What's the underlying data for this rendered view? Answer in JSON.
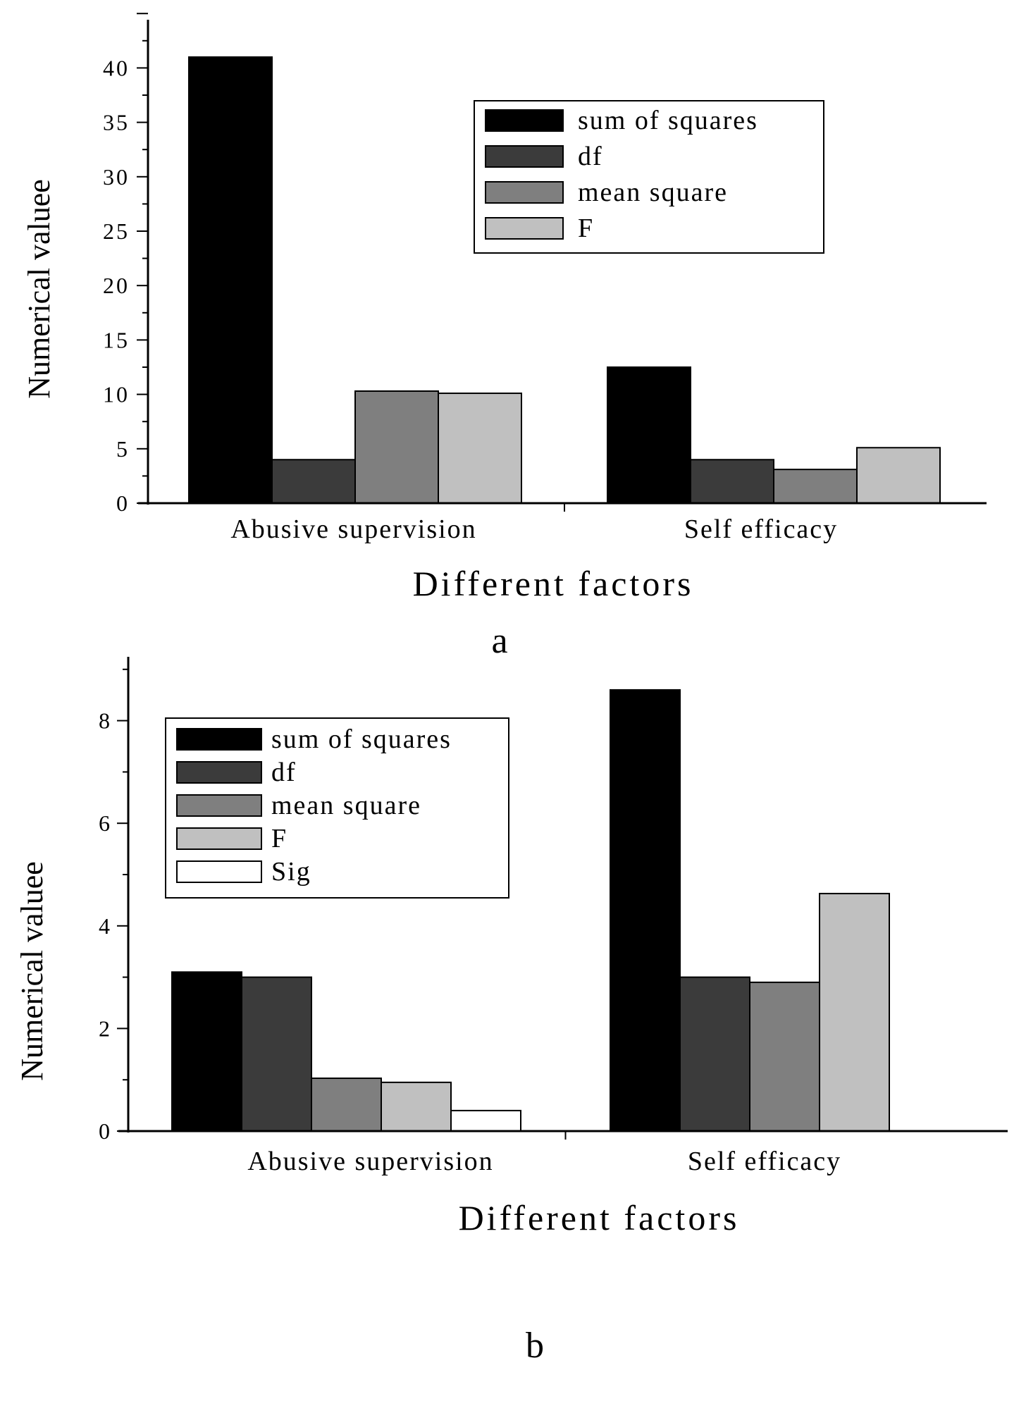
{
  "chart_data": [
    {
      "type": "bar",
      "panel": "a",
      "title": "",
      "xlabel": "Different factors",
      "ylabel": "Numerical valuee",
      "categories": [
        "Abusive supervision",
        "Self efficacy"
      ],
      "ylim": [
        0,
        45
      ],
      "yticks": [
        "0",
        "5",
        "10",
        "15",
        "20",
        "25",
        "30",
        "35",
        "40"
      ],
      "series": [
        {
          "name": "sum of squares",
          "color": "#000000",
          "values": [
            41.0,
            12.5
          ]
        },
        {
          "name": "df",
          "color": "#3b3b3b",
          "values": [
            4.0,
            4.0
          ]
        },
        {
          "name": "mean square",
          "color": "#7f7f7f",
          "values": [
            10.3,
            3.1
          ]
        },
        {
          "name": "F",
          "color": "#c0c0c0",
          "values": [
            10.1,
            5.1
          ]
        }
      ],
      "legend_position": "top-right",
      "grid": false
    },
    {
      "type": "bar",
      "panel": "b",
      "title": "",
      "xlabel": "Different factors",
      "ylabel": "Numerical valuee",
      "categories": [
        "Abusive supervision",
        "Self efficacy"
      ],
      "ylim": [
        0,
        9.3
      ],
      "yticks": [
        "0",
        "2",
        "4",
        "6",
        "8"
      ],
      "series": [
        {
          "name": "sum of squares",
          "color": "#000000",
          "values": [
            3.1,
            8.6
          ]
        },
        {
          "name": "df",
          "color": "#3b3b3b",
          "values": [
            3.0,
            3.0
          ]
        },
        {
          "name": "mean square",
          "color": "#7f7f7f",
          "values": [
            1.03,
            2.9
          ]
        },
        {
          "name": "F",
          "color": "#c0c0c0",
          "values": [
            0.95,
            4.63
          ]
        },
        {
          "name": "Sig",
          "color": "#ffffff",
          "values": [
            0.4,
            0
          ]
        }
      ],
      "legend_position": "top-left",
      "grid": false
    }
  ],
  "panel_labels": {
    "a": "a",
    "b": "b"
  }
}
